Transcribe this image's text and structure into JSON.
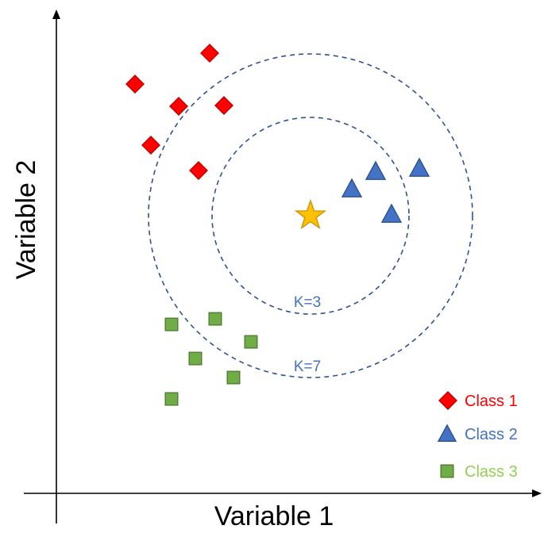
{
  "axes": {
    "x_label": "Variable 1",
    "y_label": "Variable 2"
  },
  "query_point": {
    "shape": "star",
    "color": "#FFC000",
    "stroke": "#C9960C"
  },
  "neighborhoods": [
    {
      "label": "K=3",
      "color": "#2F528F"
    },
    {
      "label": "K=7",
      "color": "#2F528F"
    }
  ],
  "classes": [
    {
      "name": "Class 1",
      "shape": "diamond",
      "fill": "#FF0000",
      "stroke": "#C00000",
      "label_color": "#FF0000"
    },
    {
      "name": "Class 2",
      "shape": "triangle",
      "fill": "#4472C4",
      "stroke": "#2F528F",
      "label_color": "#4472C4"
    },
    {
      "name": "Class 3",
      "shape": "square",
      "fill": "#70AD47",
      "stroke": "#507E32",
      "label_color": "#92D050"
    }
  ],
  "k_label_color": "#4472C4"
}
